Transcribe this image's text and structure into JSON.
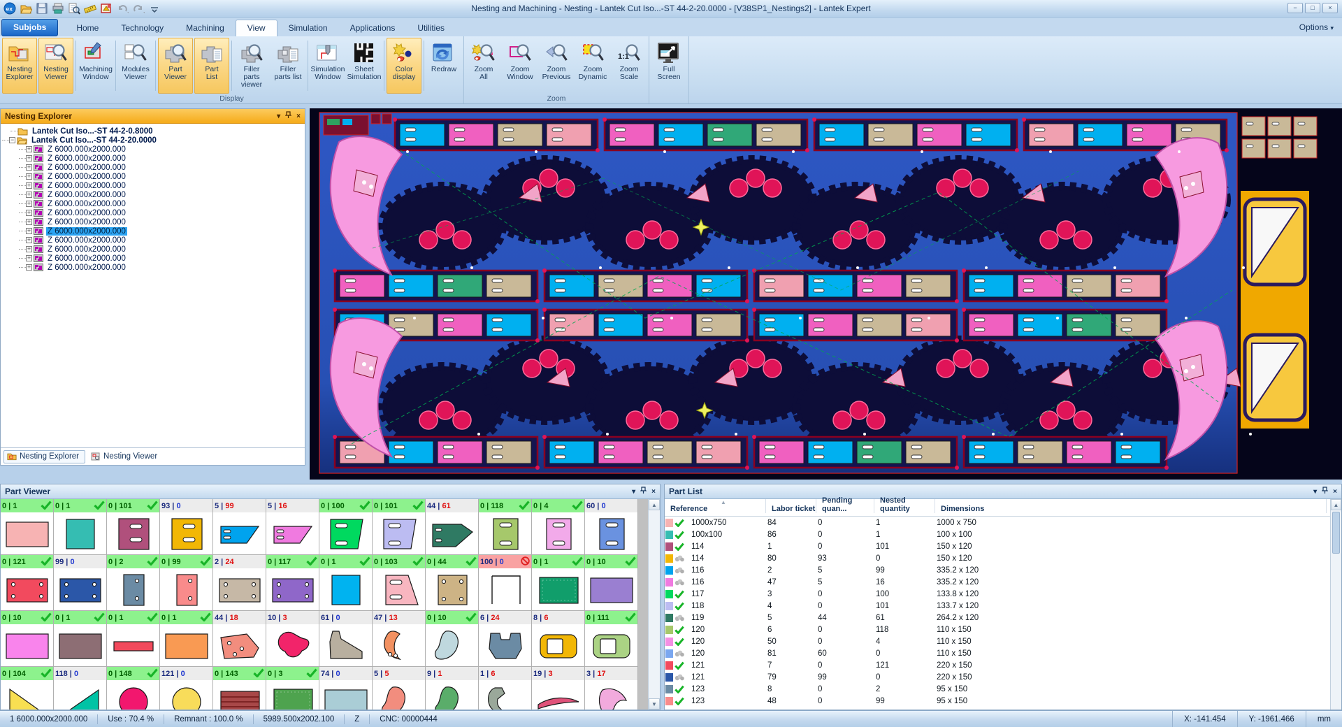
{
  "titlebar": {
    "title": "Nesting and Machining - Nesting - Lantek Cut Iso...-ST 44-2-20.0000 - [V38SP1_Nestings2] - Lantek Expert",
    "window_buttons": [
      "−",
      "□",
      "×"
    ]
  },
  "quick_toolbar": {
    "icons": [
      "app-logo",
      "open",
      "save",
      "print",
      "print-preview",
      "measure",
      "cad-tools",
      "undo",
      "redo",
      "customize"
    ]
  },
  "tabs_row": {
    "tabs": [
      {
        "label": "Subjobs",
        "style": "app"
      },
      {
        "label": "Home"
      },
      {
        "label": "Technology"
      },
      {
        "label": "Machining"
      },
      {
        "label": "View",
        "active": true
      },
      {
        "label": "Simulation"
      },
      {
        "label": "Applications"
      },
      {
        "label": "Utilities"
      }
    ],
    "options_label": "Options"
  },
  "ribbon": {
    "groups": [
      {
        "label": "Display",
        "buttons": [
          {
            "l1": "Nesting",
            "l2": "Explorer",
            "icon": "nesting-explorer",
            "active": true
          },
          {
            "l1": "Nesting",
            "l2": "Viewer",
            "icon": "nesting-viewer",
            "active": true
          },
          {
            "l1": "Machining",
            "l2": "Window",
            "icon": "machining-window",
            "sep": true
          },
          {
            "l1": "Modules",
            "l2": "Viewer",
            "icon": "modules-viewer",
            "sep": true
          },
          {
            "l1": "Part",
            "l2": "Viewer",
            "icon": "part-viewer",
            "active": true,
            "sep": true
          },
          {
            "l1": "Part",
            "l2": "List",
            "icon": "part-list",
            "active": true
          },
          {
            "l1": "Filler parts",
            "l2": "viewer",
            "icon": "filler-viewer",
            "sep": true
          },
          {
            "l1": "Filler",
            "l2": "parts list",
            "icon": "filler-list"
          },
          {
            "l1": "Simulation",
            "l2": "Window",
            "icon": "simulation-window",
            "sep": true
          },
          {
            "l1": "Sheet",
            "l2": "Simulation",
            "icon": "sheet-simulation"
          },
          {
            "l1": "Color",
            "l2": "display",
            "icon": "color-display",
            "active": true,
            "sep": true
          },
          {
            "l1": "Redraw",
            "l2": "",
            "icon": "redraw",
            "sep": true
          }
        ]
      },
      {
        "label": "Zoom",
        "buttons": [
          {
            "l1": "Zoom",
            "l2": "All",
            "icon": "zoom-all"
          },
          {
            "l1": "Zoom",
            "l2": "Window",
            "icon": "zoom-window"
          },
          {
            "l1": "Zoom",
            "l2": "Previous",
            "icon": "zoom-previous"
          },
          {
            "l1": "Zoom",
            "l2": "Dynamic",
            "icon": "zoom-dynamic"
          },
          {
            "l1": "Zoom",
            "l2": "Scale",
            "icon": "zoom-scale"
          }
        ]
      },
      {
        "label": "",
        "buttons": [
          {
            "l1": "Full",
            "l2": "Screen",
            "icon": "full-screen"
          }
        ]
      }
    ]
  },
  "explorer": {
    "title": "Nesting Explorer",
    "folders": [
      {
        "label": "Lantek Cut Iso...-ST 44-2-0.8000",
        "state": "closed"
      },
      {
        "label": "Lantek Cut Iso...-ST 44-2-20.0000",
        "state": "open"
      }
    ],
    "sheet_label": "Z 6000.000x2000.000",
    "sheet_count": 14,
    "selected_index": 9,
    "bottom_tabs": [
      {
        "label": "Nesting Explorer",
        "active": true
      },
      {
        "label": "Nesting Viewer",
        "active": false
      }
    ]
  },
  "part_viewer": {
    "title": "Part Viewer",
    "cells": [
      {
        "a": "0",
        "b": "1",
        "st": "ok",
        "shape": "rect",
        "color": "#f7b3b3"
      },
      {
        "a": "0",
        "b": "1",
        "st": "ok",
        "shape": "square",
        "color": "#35bdb2"
      },
      {
        "a": "0",
        "b": "101",
        "st": "ok",
        "shape": "slot2",
        "color": "#b0507c"
      },
      {
        "a": "93",
        "b": "0",
        "st": "no",
        "shape": "slot2",
        "color": "#f2b705"
      },
      {
        "a": "5",
        "b": "99",
        "st": "no",
        "shape": "trap",
        "color": "#00a3ee"
      },
      {
        "a": "5",
        "b": "16",
        "st": "no",
        "shape": "trap",
        "color": "#f07ae0"
      },
      {
        "a": "0",
        "b": "100",
        "st": "ok",
        "shape": "slotpar",
        "color": "#00d95f"
      },
      {
        "a": "0",
        "b": "101",
        "st": "ok",
        "shape": "slotpar",
        "color": "#bcbcf2"
      },
      {
        "a": "44",
        "b": "61",
        "st": "no",
        "shape": "arrow",
        "color": "#2f7a63"
      },
      {
        "a": "0",
        "b": "118",
        "st": "ok",
        "shape": "slotv",
        "color": "#a6c86b"
      },
      {
        "a": "0",
        "b": "4",
        "st": "ok",
        "shape": "slotv",
        "color": "#f2aaea"
      },
      {
        "a": "60",
        "b": "0",
        "st": "no",
        "shape": "slotv",
        "color": "#6a92e0"
      },
      {
        "a": "0",
        "b": "121",
        "st": "ok",
        "shape": "holes4",
        "color": "#f24a5e"
      },
      {
        "a": "99",
        "b": "0",
        "st": "no",
        "shape": "holes4",
        "color": "#2b57a8"
      },
      {
        "a": "0",
        "b": "2",
        "st": "ok",
        "shape": "holes2v",
        "color": "#6b8ba4"
      },
      {
        "a": "0",
        "b": "99",
        "st": "ok",
        "shape": "holes2v",
        "color": "#f98b8b"
      },
      {
        "a": "2",
        "b": "24",
        "st": "no",
        "shape": "holes4",
        "color": "#c6b8a6"
      },
      {
        "a": "0",
        "b": "117",
        "st": "ok",
        "shape": "holes4",
        "color": "#8f67c9"
      },
      {
        "a": "0",
        "b": "1",
        "st": "ok",
        "shape": "square",
        "color": "#00b3f0"
      },
      {
        "a": "0",
        "b": "103",
        "st": "ok",
        "shape": "trapslot",
        "color": "#f8b6c0"
      },
      {
        "a": "0",
        "b": "44",
        "st": "ok",
        "shape": "holes4sq",
        "color": "#cdb385"
      },
      {
        "a": "100",
        "b": "0",
        "st": "blk",
        "shape": "outline",
        "color": "#ffffff"
      },
      {
        "a": "0",
        "b": "1",
        "st": "ok",
        "shape": "texrect",
        "color": "#119e6b"
      },
      {
        "a": "0",
        "b": "10",
        "st": "ok",
        "shape": "rect",
        "color": "#9a7fd1"
      },
      {
        "a": "0",
        "b": "10",
        "st": "ok",
        "shape": "rect",
        "color": "#f984ec"
      },
      {
        "a": "0",
        "b": "1",
        "st": "ok",
        "shape": "rect",
        "color": "#8d6e74"
      },
      {
        "a": "0",
        "b": "1",
        "st": "ok",
        "shape": "thinrect",
        "color": "#f2495c"
      },
      {
        "a": "0",
        "b": "1",
        "st": "ok",
        "shape": "rect",
        "color": "#f99a53"
      },
      {
        "a": "44",
        "b": "18",
        "st": "no",
        "shape": "poly",
        "color": "#f28d7e"
      },
      {
        "a": "10",
        "b": "3",
        "st": "no",
        "shape": "blobx",
        "color": "#f2246a"
      },
      {
        "a": "61",
        "b": "0",
        "st": "no",
        "shape": "hookL",
        "color": "#b8af9f"
      },
      {
        "a": "47",
        "b": "13",
        "st": "no",
        "shape": "crescent",
        "color": "#f29161"
      },
      {
        "a": "0",
        "b": "10",
        "st": "ok",
        "shape": "blobS",
        "color": "#bfd8de"
      },
      {
        "a": "6",
        "b": "24",
        "st": "no",
        "shape": "bracket",
        "color": "#6b8ba4"
      },
      {
        "a": "8",
        "b": "6",
        "st": "no",
        "shape": "ringsq",
        "color": "#f2b705"
      },
      {
        "a": "0",
        "b": "111",
        "st": "ok",
        "shape": "ringsq",
        "color": "#abd384"
      },
      {
        "a": "0",
        "b": "104",
        "st": "ok",
        "shape": "tri",
        "color": "#f8df52"
      },
      {
        "a": "118",
        "b": "0",
        "st": "no",
        "shape": "tri2",
        "color": "#00c3a5"
      },
      {
        "a": "0",
        "b": "148",
        "st": "ok",
        "shape": "circle",
        "color": "#f2176e"
      },
      {
        "a": "121",
        "b": "0",
        "st": "no",
        "shape": "circle",
        "color": "#f8dc5a"
      },
      {
        "a": "0",
        "b": "143",
        "st": "ok",
        "shape": "stripes",
        "color": "#a84848"
      },
      {
        "a": "0",
        "b": "3",
        "st": "ok",
        "shape": "texrect",
        "color": "#4ea34e"
      },
      {
        "a": "74",
        "b": "0",
        "st": "no",
        "shape": "rect",
        "color": "#aacdd6"
      },
      {
        "a": "5",
        "b": "5",
        "st": "no",
        "shape": "blobS",
        "color": "#f28d7e"
      },
      {
        "a": "9",
        "b": "1",
        "st": "no",
        "shape": "blobS",
        "color": "#5aad6a"
      },
      {
        "a": "1",
        "b": "6",
        "st": "no",
        "shape": "hookC",
        "color": "#9aa89a"
      },
      {
        "a": "19",
        "b": "3",
        "st": "no",
        "shape": "sliver",
        "color": "#e0527a"
      },
      {
        "a": "3",
        "b": "17",
        "st": "no",
        "shape": "curvy",
        "color": "#f2aadd"
      }
    ]
  },
  "part_list": {
    "title": "Part List",
    "columns": [
      "Reference",
      "Labor ticket",
      "Pending quan...",
      "Nested quantity",
      "Dimensions"
    ],
    "rows": [
      {
        "color": "#f7b3b3",
        "st": "ok",
        "ref": "1000x750",
        "labor": "84",
        "pending": "0",
        "nested": "1",
        "dims": "1000 x 750"
      },
      {
        "color": "#35bdb2",
        "st": "ok",
        "ref": "100x100",
        "labor": "86",
        "pending": "0",
        "nested": "1",
        "dims": "100 x 100"
      },
      {
        "color": "#b0507c",
        "st": "ok",
        "ref": "114",
        "labor": "1",
        "pending": "0",
        "nested": "101",
        "dims": "150 x 120"
      },
      {
        "color": "#f2b705",
        "st": "no",
        "ref": "114",
        "labor": "80",
        "pending": "93",
        "nested": "0",
        "dims": "150 x 120"
      },
      {
        "color": "#00a3ee",
        "st": "no",
        "ref": "116",
        "labor": "2",
        "pending": "5",
        "nested": "99",
        "dims": "335.2 x 120"
      },
      {
        "color": "#f07ae0",
        "st": "no",
        "ref": "116",
        "labor": "47",
        "pending": "5",
        "nested": "16",
        "dims": "335.2 x 120"
      },
      {
        "color": "#00d95f",
        "st": "ok",
        "ref": "117",
        "labor": "3",
        "pending": "0",
        "nested": "100",
        "dims": "133.8 x 120"
      },
      {
        "color": "#bcbcf2",
        "st": "ok",
        "ref": "118",
        "labor": "4",
        "pending": "0",
        "nested": "101",
        "dims": "133.7 x 120"
      },
      {
        "color": "#2f7a63",
        "st": "no",
        "ref": "119",
        "labor": "5",
        "pending": "44",
        "nested": "61",
        "dims": "264.2 x 120"
      },
      {
        "color": "#a6c86b",
        "st": "ok",
        "ref": "120",
        "labor": "6",
        "pending": "0",
        "nested": "118",
        "dims": "110 x 150"
      },
      {
        "color": "#f48fe3",
        "st": "ok",
        "ref": "120",
        "labor": "50",
        "pending": "0",
        "nested": "4",
        "dims": "110 x 150"
      },
      {
        "color": "#7aa7f0",
        "st": "no",
        "ref": "120",
        "labor": "81",
        "pending": "60",
        "nested": "0",
        "dims": "110 x 150"
      },
      {
        "color": "#f24a5e",
        "st": "ok",
        "ref": "121",
        "labor": "7",
        "pending": "0",
        "nested": "121",
        "dims": "220 x 150"
      },
      {
        "color": "#2b57a8",
        "st": "no",
        "ref": "121",
        "labor": "79",
        "pending": "99",
        "nested": "0",
        "dims": "220 x 150"
      },
      {
        "color": "#6b8ba4",
        "st": "ok",
        "ref": "123",
        "labor": "8",
        "pending": "0",
        "nested": "2",
        "dims": "95 x 150"
      },
      {
        "color": "#f98b8b",
        "st": "ok",
        "ref": "123",
        "labor": "48",
        "pending": "0",
        "nested": "99",
        "dims": "95 x 150"
      }
    ]
  },
  "status_bar": {
    "left": [
      "1  6000.000x2000.000",
      "Use : 70.4 %",
      "Remnant : 100.0 %",
      "5989.500x2002.100",
      "Z",
      "CNC: 00000444"
    ],
    "right": [
      "X: -141.454",
      "Y: -1961.466",
      "mm"
    ]
  }
}
